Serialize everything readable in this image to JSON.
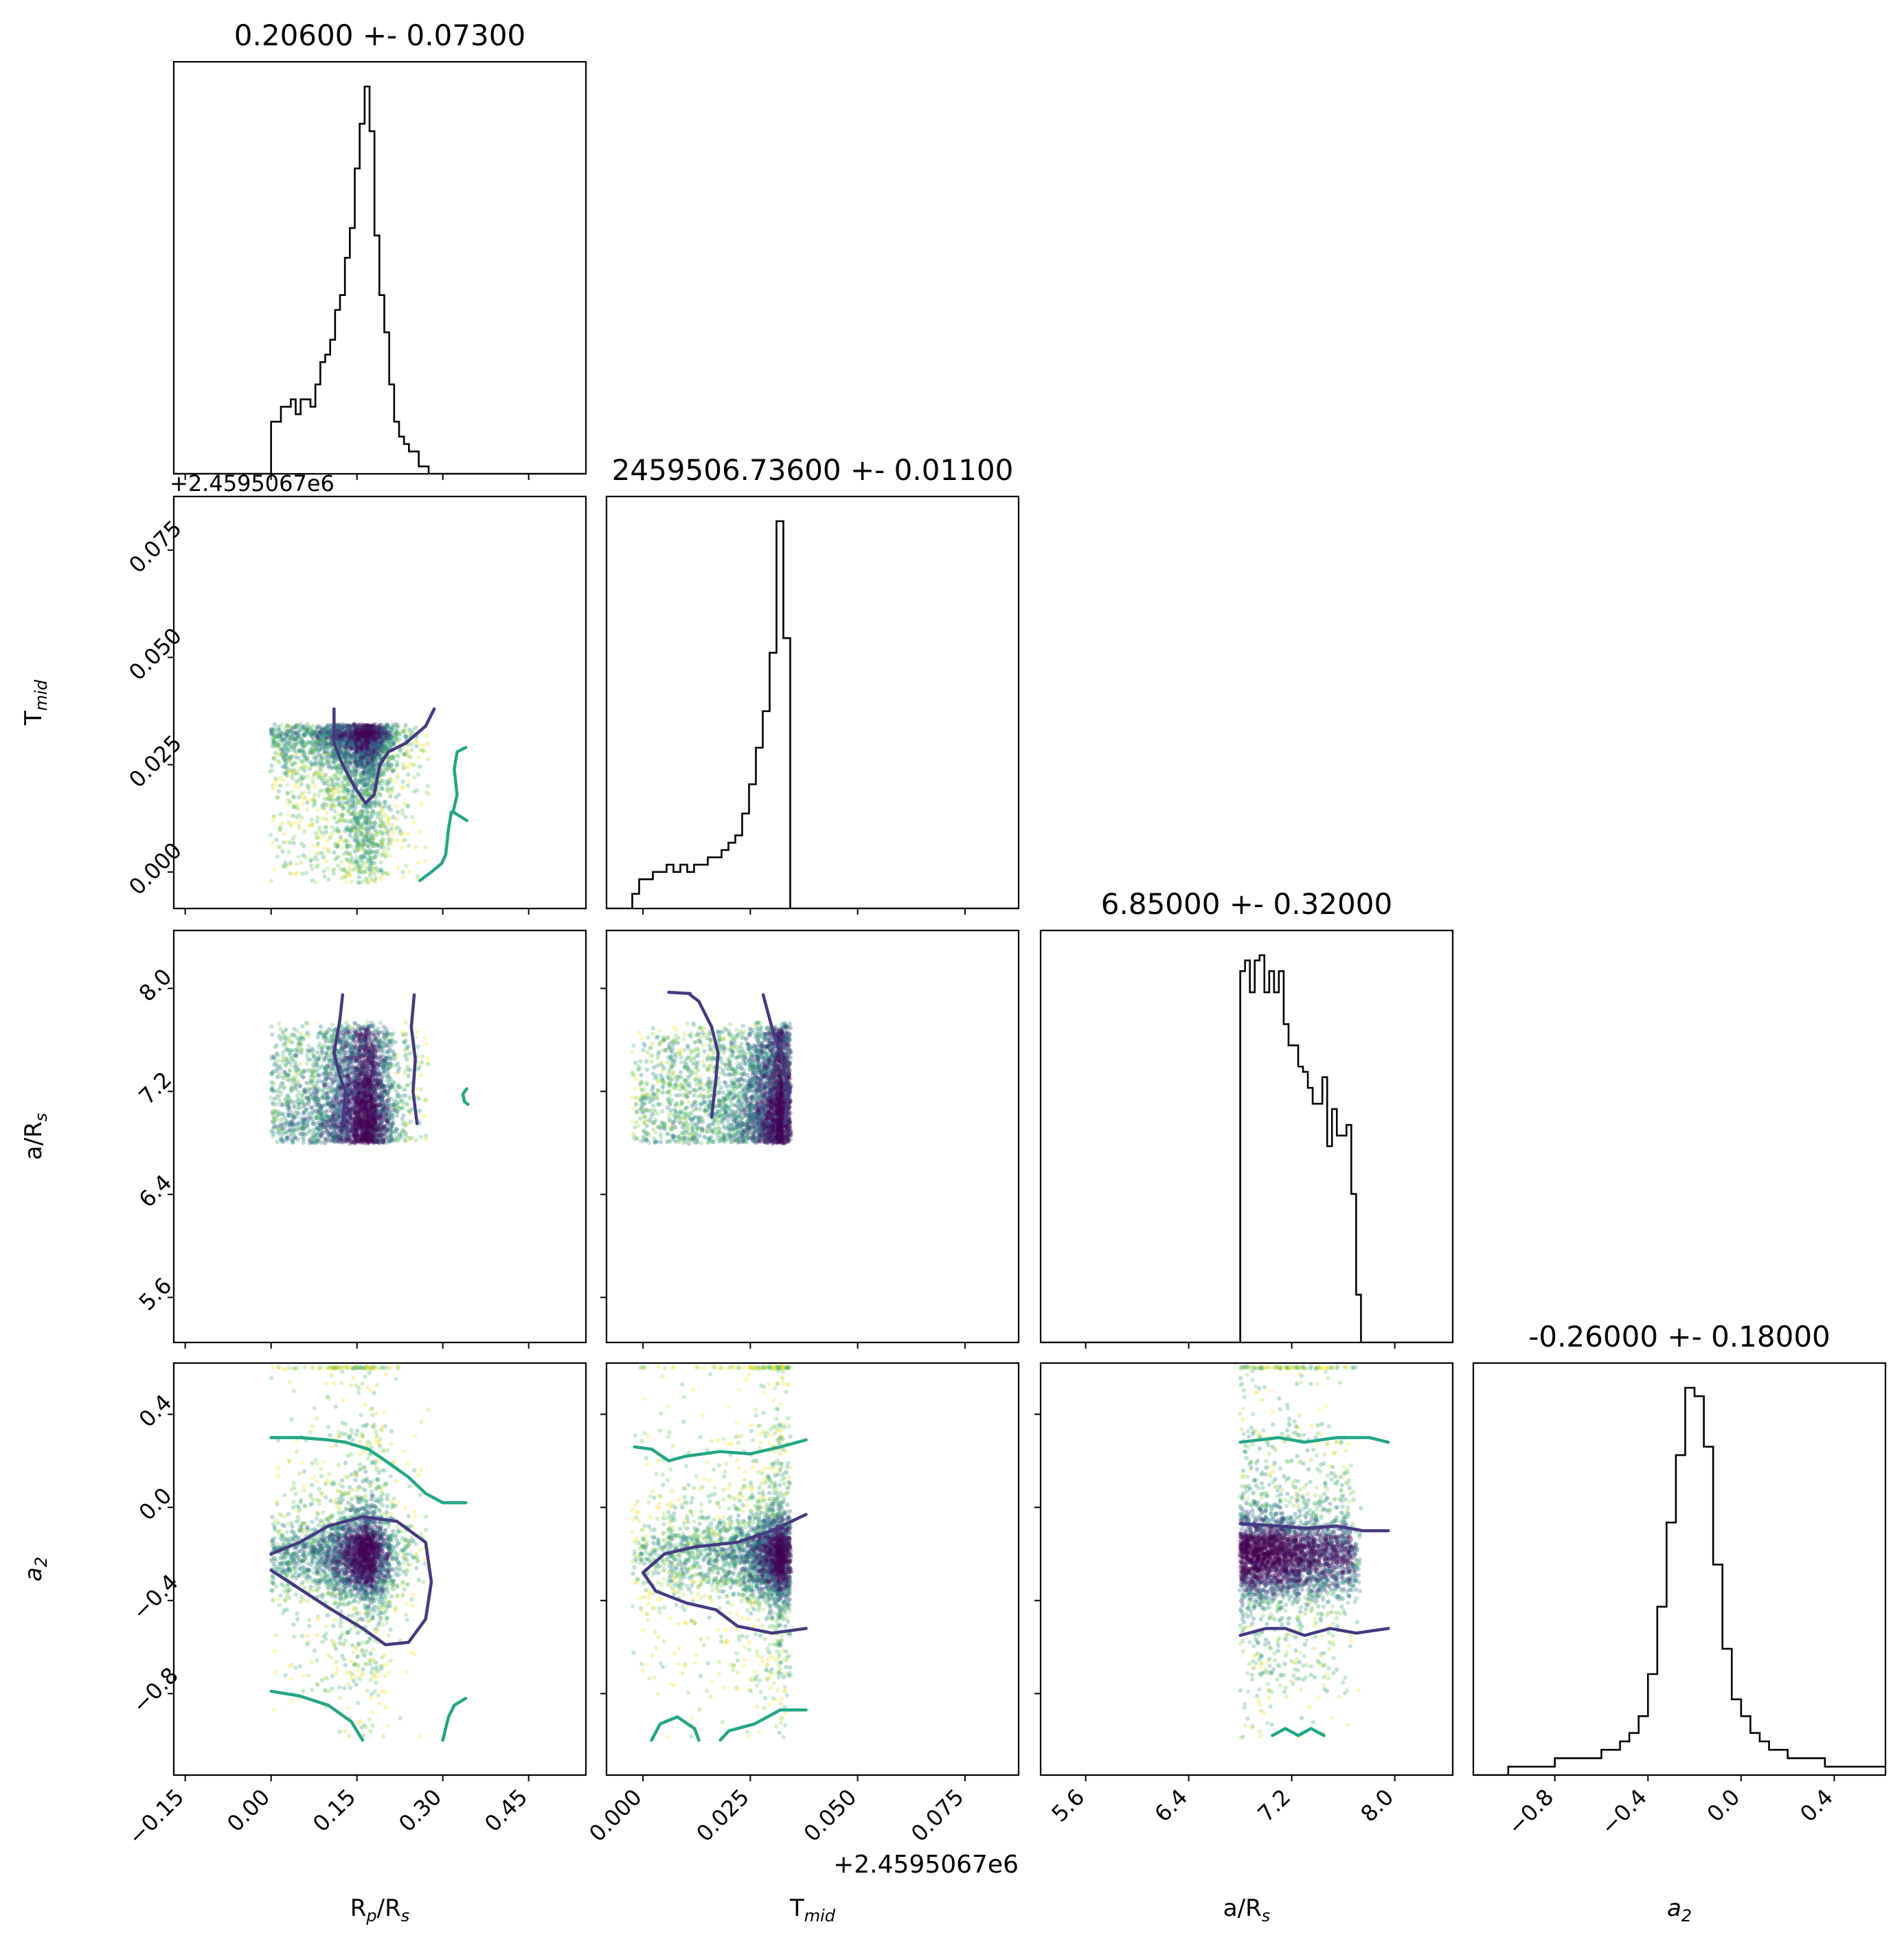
{
  "chart_data": {
    "type": "corner",
    "parameters": [
      {
        "key": "rprs",
        "label": "R",
        "label_sub": "p",
        "label_tail": "/R",
        "label_sub2": "s",
        "italic_base": false,
        "range": [
          -0.17,
          0.55
        ],
        "ticks": [
          "−0.15",
          "0.00",
          "0.15",
          "0.30",
          "0.45"
        ],
        "tick_values": [
          -0.15,
          0.0,
          0.15,
          0.3,
          0.45
        ],
        "offset_text": "",
        "title": "0.20600 +- 0.07300"
      },
      {
        "key": "tmid",
        "label": "T",
        "label_sub": "mid",
        "label_tail": "",
        "label_sub2": "",
        "italic_base": false,
        "range": [
          -0.0085,
          0.0875
        ],
        "ticks": [
          "0.000",
          "0.025",
          "0.050",
          "0.075"
        ],
        "tick_values": [
          0.0,
          0.025,
          0.05,
          0.075
        ],
        "offset_text": "+2.4595067e6",
        "title": "2459506.73600 +- 0.01100"
      },
      {
        "key": "ars",
        "label": "a/R",
        "label_sub": "s",
        "label_tail": "",
        "label_sub2": "",
        "italic_base": false,
        "range": [
          5.25,
          8.45
        ],
        "ticks": [
          "5.6",
          "6.4",
          "7.2",
          "8.0"
        ],
        "tick_values": [
          5.6,
          6.4,
          7.2,
          8.0
        ],
        "offset_text": "",
        "title": "6.85000 +- 0.32000"
      },
      {
        "key": "a2",
        "label": "a",
        "label_sub": "2",
        "label_tail": "",
        "label_sub2": "",
        "italic_base": true,
        "range": [
          -1.15,
          0.62
        ],
        "ticks": [
          "−0.8",
          "−0.4",
          "0.0",
          "0.4"
        ],
        "tick_values": [
          -0.8,
          -0.4,
          0.0,
          0.4
        ],
        "offset_text": "",
        "title": "-0.26000 +- 0.18000"
      }
    ],
    "histograms": [
      {
        "param": "rprs",
        "bin_start": 0.0,
        "bin_width": 0.0086,
        "counts": [
          7,
          7,
          9,
          9,
          10,
          8,
          10,
          10,
          9,
          12,
          15,
          16,
          18,
          22,
          24,
          29,
          33,
          41,
          47,
          52,
          46,
          32,
          24,
          19,
          12,
          7,
          5,
          4,
          3,
          3,
          1,
          1
        ]
      },
      {
        "param": "tmid",
        "bin_start": -0.0025,
        "bin_width": 0.0016,
        "counts": [
          2,
          4,
          4,
          5,
          5,
          6,
          5,
          6,
          5,
          6,
          6,
          7,
          7,
          8,
          9,
          10,
          13,
          17,
          22,
          27,
          35,
          53,
          37
        ]
      },
      {
        "param": "ars",
        "bin_start": 6.8,
        "bin_width": 0.0375,
        "counts": [
          70,
          72,
          66,
          72,
          73,
          66,
          70,
          66,
          70,
          60,
          56,
          56,
          52,
          51,
          48,
          45,
          45,
          50,
          37,
          44,
          39,
          39,
          41,
          28,
          9
        ]
      },
      {
        "param": "a2",
        "bin_start": -1.0,
        "bin_width": 0.04,
        "counts": [
          1,
          1,
          1,
          1,
          1,
          2,
          2,
          2,
          2,
          2,
          3,
          3,
          4,
          5,
          7,
          12,
          20,
          30,
          38,
          46,
          45,
          39,
          25,
          15,
          9,
          7,
          5,
          4,
          3,
          3,
          2,
          2,
          2,
          2,
          1,
          1,
          1,
          1,
          1,
          1,
          1,
          1,
          1,
          1,
          1,
          1,
          1,
          1,
          1,
          1
        ]
      }
    ],
    "scatter_bounds": {
      "rprs": [
        0.0,
        0.34
      ],
      "tmid": [
        -0.003,
        0.038
      ],
      "ars": [
        6.8,
        7.95
      ],
      "a2": [
        -1.0,
        0.6
      ]
    },
    "scatter_colormap": "viridis",
    "contour_colors": {
      "inner": "#443983",
      "outer": "#21a685"
    },
    "contours": {
      "tmid_vs_rprs": {
        "inner": [
          [
            [
              0.11,
              0.038
            ],
            [
              0.11,
              0.03
            ],
            [
              0.125,
              0.025
            ],
            [
              0.145,
              0.02
            ],
            [
              0.165,
              0.016
            ],
            [
              0.18,
              0.018
            ],
            [
              0.19,
              0.025
            ],
            [
              0.205,
              0.028
            ],
            [
              0.235,
              0.03
            ],
            [
              0.27,
              0.034
            ],
            [
              0.285,
              0.038
            ]
          ]
        ],
        "outer": [
          [
            [
              0.34,
              0.029
            ],
            [
              0.325,
              0.028
            ],
            [
              0.32,
              0.024
            ],
            [
              0.325,
              0.018
            ],
            [
              0.318,
              0.014
            ],
            [
              0.342,
              0.012
            ]
          ],
          [
            [
              0.26,
              -0.002
            ],
            [
              0.28,
              0.0
            ],
            [
              0.298,
              0.002
            ],
            [
              0.305,
              0.004
            ],
            [
              0.31,
              0.01
            ],
            [
              0.315,
              0.014
            ]
          ]
        ]
      },
      "ars_vs_rprs": {
        "inner": [
          [
            [
              0.125,
              7.95
            ],
            [
              0.12,
              7.75
            ],
            [
              0.11,
              7.5
            ],
            [
              0.12,
              7.32
            ],
            [
              0.13,
              7.2
            ],
            [
              0.125,
              6.95
            ]
          ],
          [
            [
              0.25,
              7.95
            ],
            [
              0.245,
              7.7
            ],
            [
              0.252,
              7.45
            ],
            [
              0.248,
              7.2
            ],
            [
              0.255,
              6.95
            ]
          ]
        ],
        "outer": [
          [
            [
              0.342,
              7.22
            ],
            [
              0.335,
              7.18
            ],
            [
              0.338,
              7.12
            ],
            [
              0.344,
              7.1
            ]
          ]
        ]
      },
      "a2_vs_rprs": {
        "inner": [
          [
            [
              0.0,
              -0.2
            ],
            [
              0.05,
              -0.15
            ],
            [
              0.1,
              -0.08
            ],
            [
              0.16,
              -0.04
            ],
            [
              0.22,
              -0.06
            ],
            [
              0.27,
              -0.15
            ],
            [
              0.28,
              -0.32
            ],
            [
              0.27,
              -0.48
            ],
            [
              0.24,
              -0.58
            ],
            [
              0.2,
              -0.59
            ],
            [
              0.16,
              -0.52
            ],
            [
              0.1,
              -0.43
            ],
            [
              0.05,
              -0.35
            ],
            [
              0.0,
              -0.27
            ]
          ]
        ],
        "outer": [
          [
            [
              0.0,
              0.3
            ],
            [
              0.05,
              0.3
            ],
            [
              0.1,
              0.29
            ],
            [
              0.13,
              0.28
            ],
            [
              0.17,
              0.25
            ],
            [
              0.2,
              0.2
            ],
            [
              0.24,
              0.13
            ],
            [
              0.27,
              0.06
            ],
            [
              0.3,
              0.02
            ],
            [
              0.34,
              0.02
            ]
          ],
          [
            [
              0.0,
              -0.79
            ],
            [
              0.05,
              -0.81
            ],
            [
              0.1,
              -0.85
            ],
            [
              0.14,
              -0.92
            ],
            [
              0.16,
              -1.0
            ]
          ],
          [
            [
              0.3,
              -1.0
            ],
            [
              0.31,
              -0.9
            ],
            [
              0.32,
              -0.85
            ],
            [
              0.34,
              -0.82
            ]
          ]
        ]
      },
      "a2_vs_tmid": {
        "inner": [
          [
            [
              0.038,
              -0.03
            ],
            [
              0.03,
              -0.1
            ],
            [
              0.022,
              -0.15
            ],
            [
              0.012,
              -0.17
            ],
            [
              0.005,
              -0.2
            ],
            [
              0.0,
              -0.28
            ],
            [
              0.003,
              -0.36
            ],
            [
              0.01,
              -0.41
            ],
            [
              0.017,
              -0.44
            ],
            [
              0.022,
              -0.51
            ],
            [
              0.03,
              -0.54
            ],
            [
              0.038,
              -0.52
            ]
          ]
        ],
        "outer": [
          [
            [
              -0.002,
              0.26
            ],
            [
              0.002,
              0.25
            ],
            [
              0.006,
              0.2
            ],
            [
              0.01,
              0.22
            ],
            [
              0.018,
              0.24
            ],
            [
              0.025,
              0.23
            ],
            [
              0.032,
              0.26
            ],
            [
              0.038,
              0.29
            ]
          ],
          [
            [
              0.002,
              -1.0
            ],
            [
              0.004,
              -0.93
            ],
            [
              0.008,
              -0.9
            ],
            [
              0.012,
              -0.95
            ],
            [
              0.013,
              -1.0
            ]
          ],
          [
            [
              0.018,
              -1.0
            ],
            [
              0.02,
              -0.96
            ],
            [
              0.026,
              -0.93
            ],
            [
              0.032,
              -0.87
            ],
            [
              0.038,
              -0.87
            ]
          ]
        ]
      },
      "a2_vs_ars": {
        "inner": [
          [
            [
              6.8,
              -0.07
            ],
            [
              7.1,
              -0.08
            ],
            [
              7.3,
              -0.09
            ],
            [
              7.55,
              -0.08
            ],
            [
              7.75,
              -0.1
            ],
            [
              7.95,
              -0.1
            ]
          ],
          [
            [
              6.8,
              -0.55
            ],
            [
              7.0,
              -0.52
            ],
            [
              7.15,
              -0.52
            ],
            [
              7.3,
              -0.55
            ],
            [
              7.5,
              -0.52
            ],
            [
              7.7,
              -0.54
            ],
            [
              7.95,
              -0.52
            ]
          ]
        ],
        "outer": [
          [
            [
              6.8,
              0.28
            ],
            [
              7.1,
              0.3
            ],
            [
              7.3,
              0.28
            ],
            [
              7.55,
              0.3
            ],
            [
              7.8,
              0.3
            ],
            [
              7.95,
              0.28
            ]
          ],
          [
            [
              7.05,
              -0.98
            ],
            [
              7.15,
              -0.95
            ],
            [
              7.25,
              -0.98
            ],
            [
              7.35,
              -0.95
            ],
            [
              7.45,
              -0.98
            ]
          ]
        ]
      },
      "ars_vs_tmid": {
        "inner": [
          [
            [
              0.011,
              7.95
            ],
            [
              0.013,
              7.9
            ],
            [
              0.016,
              7.7
            ],
            [
              0.0175,
              7.5
            ],
            [
              0.017,
              7.3
            ],
            [
              0.016,
              7.0
            ]
          ],
          [
            [
              0.028,
              7.95
            ],
            [
              0.03,
              7.7
            ],
            [
              0.032,
              7.5
            ],
            [
              0.034,
              7.2
            ],
            [
              0.033,
              6.95
            ]
          ],
          [
            [
              0.006,
              7.97
            ],
            [
              0.011,
              7.96
            ]
          ]
        ],
        "outer": []
      }
    },
    "xlabel_suffix": "",
    "grid": false,
    "legend": "none"
  }
}
